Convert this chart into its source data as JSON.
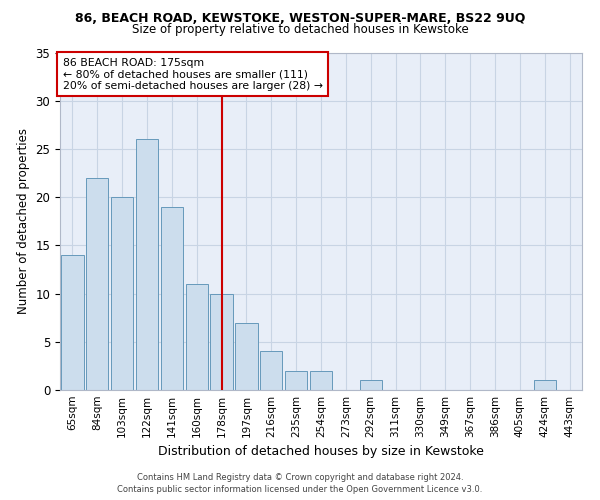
{
  "title": "86, BEACH ROAD, KEWSTOKE, WESTON-SUPER-MARE, BS22 9UQ",
  "subtitle": "Size of property relative to detached houses in Kewstoke",
  "xlabel": "Distribution of detached houses by size in Kewstoke",
  "ylabel": "Number of detached properties",
  "categories": [
    "65sqm",
    "84sqm",
    "103sqm",
    "122sqm",
    "141sqm",
    "160sqm",
    "178sqm",
    "197sqm",
    "216sqm",
    "235sqm",
    "254sqm",
    "273sqm",
    "292sqm",
    "311sqm",
    "330sqm",
    "349sqm",
    "367sqm",
    "386sqm",
    "405sqm",
    "424sqm",
    "443sqm"
  ],
  "values": [
    14,
    22,
    20,
    26,
    19,
    11,
    10,
    7,
    4,
    2,
    2,
    0,
    1,
    0,
    0,
    0,
    0,
    0,
    0,
    1,
    0
  ],
  "bar_color": "#ccdded",
  "bar_edge_color": "#6699bb",
  "vline_index": 6,
  "annotation_text_line1": "86 BEACH ROAD: 175sqm",
  "annotation_text_line2": "← 80% of detached houses are smaller (111)",
  "annotation_text_line3": "20% of semi-detached houses are larger (28) →",
  "annotation_box_color": "#ffffff",
  "annotation_box_edge_color": "#cc0000",
  "vline_color": "#cc0000",
  "ylim": [
    0,
    35
  ],
  "yticks": [
    0,
    5,
    10,
    15,
    20,
    25,
    30,
    35
  ],
  "grid_color": "#c8d4e4",
  "bg_color": "#e8eef8",
  "footer_line1": "Contains HM Land Registry data © Crown copyright and database right 2024.",
  "footer_line2": "Contains public sector information licensed under the Open Government Licence v3.0."
}
